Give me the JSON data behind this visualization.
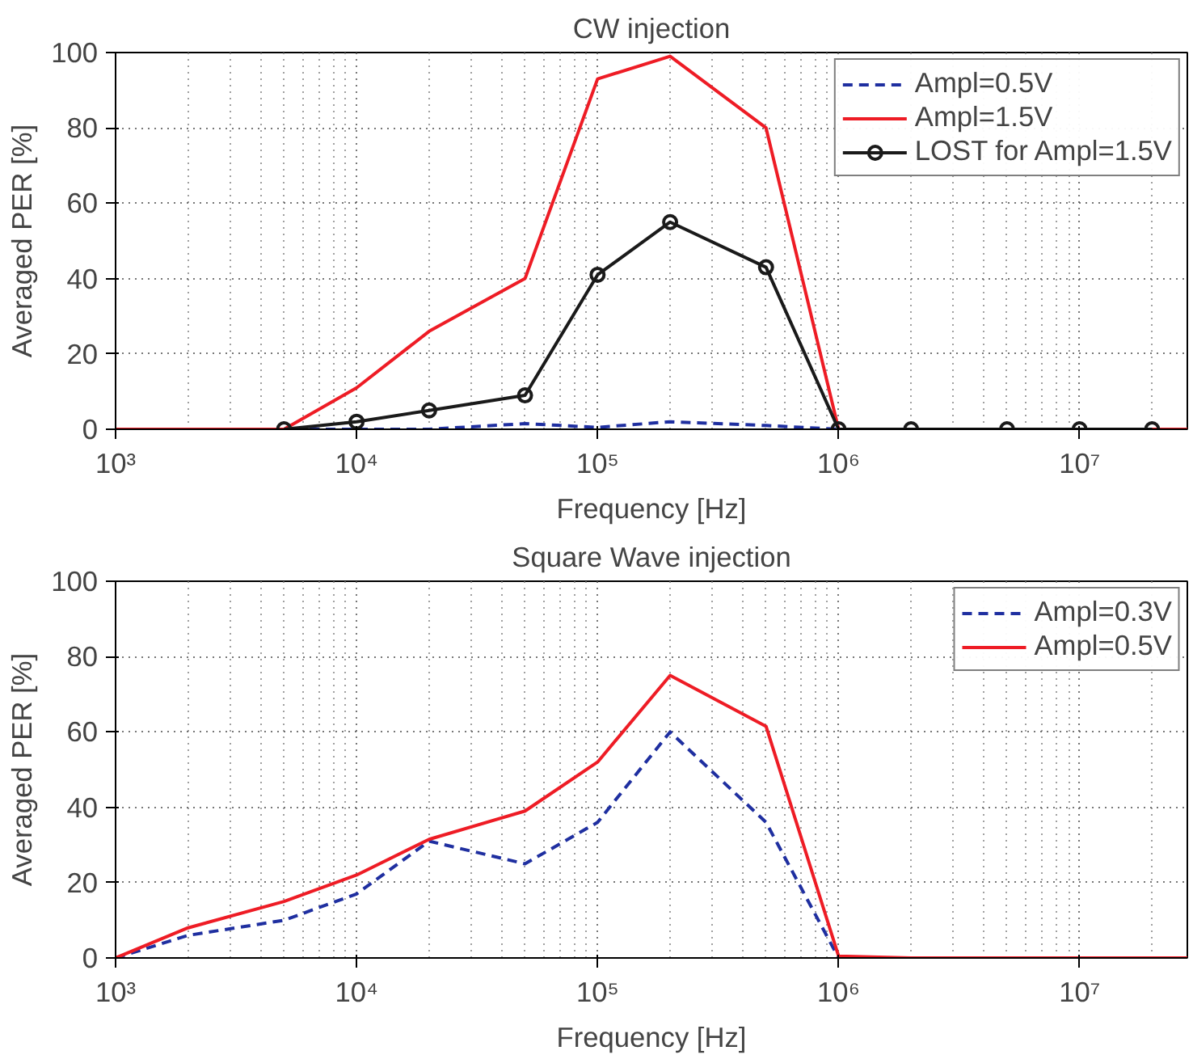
{
  "chart_data": [
    {
      "type": "line",
      "title": "CW injection",
      "xlabel": "Frequency [Hz]",
      "ylabel": "Averaged PER [%]",
      "log": "x",
      "grid": true,
      "legend": "top right",
      "xlim": [
        1000,
        28000000
      ],
      "ylim": [
        0,
        100
      ],
      "xticks": [
        {
          "value": 1000,
          "label": "10³"
        },
        {
          "value": 10000,
          "label": "10⁴"
        },
        {
          "value": 100000,
          "label": "10⁵"
        },
        {
          "value": 1000000,
          "label": "10⁶"
        },
        {
          "value": 10000000,
          "label": "10⁷"
        }
      ],
      "yticks": [
        0,
        20,
        40,
        60,
        80,
        100
      ],
      "x": [
        1000,
        2000,
        5000,
        10000,
        20000,
        50000,
        100000,
        200000,
        500000,
        1000000,
        2000000,
        5000000,
        10000000,
        20000000,
        28000000
      ],
      "series": [
        {
          "name": "Ampl=0.5V",
          "color": "#1f2fa0",
          "line_style": "dashed",
          "marker": "none",
          "values": [
            0,
            0,
            0,
            0,
            0,
            1.5,
            0.5,
            2,
            1,
            0,
            0,
            null,
            null,
            null,
            null
          ]
        },
        {
          "name": "Ampl=1.5V",
          "color": "#ee1c25",
          "line_style": "solid",
          "marker": "none",
          "values": [
            0,
            0,
            0,
            11,
            26,
            40,
            93,
            99,
            80,
            0,
            0,
            0,
            0,
            0,
            0
          ]
        },
        {
          "name": "LOST for Ampl=1.5V",
          "color": "#1a1a1a",
          "line_style": "solid",
          "marker": "circle",
          "x": [
            5000,
            10000,
            20000,
            50000,
            100000,
            200000,
            500000,
            1000000,
            2000000,
            5000000,
            10000000,
            20000000
          ],
          "values": [
            0,
            2,
            5,
            9,
            41,
            55,
            43,
            0,
            0,
            0,
            0,
            0
          ]
        }
      ]
    },
    {
      "type": "line",
      "title": "Square Wave injection",
      "xlabel": "Frequency [Hz]",
      "ylabel": "Averaged PER [%]",
      "log": "x",
      "grid": true,
      "legend": "top right",
      "xlim": [
        1000,
        28000000
      ],
      "ylim": [
        0,
        100
      ],
      "xticks": [
        {
          "value": 1000,
          "label": "10³"
        },
        {
          "value": 10000,
          "label": "10⁴"
        },
        {
          "value": 100000,
          "label": "10⁵"
        },
        {
          "value": 1000000,
          "label": "10⁶"
        },
        {
          "value": 10000000,
          "label": "10⁷"
        }
      ],
      "yticks": [
        0,
        20,
        40,
        60,
        80,
        100
      ],
      "x": [
        1000,
        2000,
        5000,
        10000,
        20000,
        50000,
        100000,
        200000,
        500000,
        1000000,
        2000000,
        5000000,
        10000000,
        20000000,
        28000000
      ],
      "series": [
        {
          "name": "Ampl=0.3V",
          "color": "#1f2fa0",
          "line_style": "dashed",
          "marker": "none",
          "values": [
            0,
            6,
            10,
            17,
            31,
            25,
            36,
            60,
            36,
            0,
            0,
            null,
            null,
            null,
            null
          ]
        },
        {
          "name": "Ampl=0.5V",
          "color": "#ee1c25",
          "line_style": "solid",
          "marker": "none",
          "values": [
            0,
            8,
            15,
            22,
            31.5,
            39,
            52,
            75,
            61.5,
            0.5,
            0,
            0,
            0,
            0,
            0
          ]
        }
      ]
    }
  ]
}
